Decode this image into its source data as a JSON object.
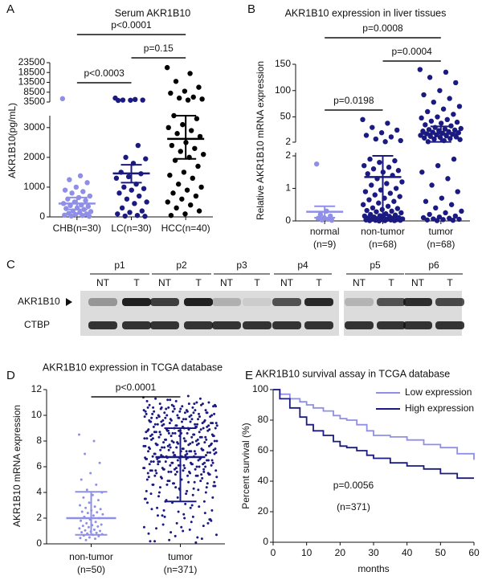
{
  "chart_data": [
    {
      "type": "dot",
      "panel": "A",
      "title": "Serum AKR1B10",
      "ylabel": "AKR1B10(pg/mL)",
      "categories": [
        "CHB(n=30)",
        "LC(n=30)",
        "HCC(n=40)"
      ],
      "colors": [
        "#8f8fe8",
        "#1a1a80",
        "#000000"
      ],
      "values": [
        [
          5200,
          1380,
          1250,
          1150,
          1000,
          900,
          850,
          800,
          700,
          650,
          600,
          550,
          500,
          450,
          400,
          380,
          350,
          300,
          280,
          250,
          200,
          180,
          150,
          120,
          100,
          80,
          60,
          50,
          30,
          20
        ],
        [
          5500,
          4800,
          4500,
          4500,
          4400,
          4300,
          2400,
          2000,
          1950,
          1800,
          1500,
          1450,
          1350,
          1300,
          1100,
          1000,
          950,
          900,
          800,
          700,
          600,
          500,
          450,
          300,
          200,
          150,
          100,
          50,
          30,
          20
        ],
        [
          21000,
          18000,
          14000,
          11000,
          9000,
          8000,
          6000,
          5500,
          5000,
          4500,
          3400,
          3300,
          3100,
          3000,
          2900,
          2800,
          2700,
          2500,
          2400,
          2300,
          2200,
          2100,
          2000,
          1900,
          1700,
          1500,
          1400,
          1300,
          1100,
          1000,
          900,
          800,
          700,
          600,
          500,
          400,
          300,
          200,
          100,
          50
        ]
      ],
      "means": [
        450,
        1460,
        2620
      ],
      "error_bars": [
        [
          250,
          650
        ],
        [
          1150,
          1750
        ],
        [
          1950,
          3400
        ]
      ],
      "y_segments": [
        {
          "ylim": [
            0,
            3400
          ],
          "yticks": [
            0,
            1000,
            2000,
            3000
          ]
        },
        {
          "ylim": [
            3500,
            23500
          ],
          "yticks": [
            3500,
            8500,
            13500,
            18500,
            23500
          ]
        }
      ],
      "annotations": [
        {
          "text": "p<0.0001",
          "pair": [
            0,
            2
          ]
        },
        {
          "text": "p=0.15",
          "pair": [
            1,
            2
          ]
        },
        {
          "text": "p<0.0003",
          "pair": [
            0,
            1
          ]
        }
      ]
    },
    {
      "type": "dot",
      "panel": "B",
      "title": "AKR1B10 expression in liver tissues",
      "ylabel": "Relative AKR1B10 mRNA expression",
      "categories": [
        "normal",
        "non-tumor",
        "tumor"
      ],
      "category_sublabels": [
        "(n=9)",
        "(n=68)",
        "(n=68)"
      ],
      "colors": [
        "#8f8fe8",
        "#1a1a80",
        "#1a1a80"
      ],
      "values": [
        [
          1.75,
          0.3,
          0.2,
          0.15,
          0.1,
          0.08,
          0.05,
          0.03,
          0.02
        ],
        [
          45,
          38,
          30,
          25,
          20,
          15,
          12,
          8,
          5,
          3,
          1.9,
          1.85,
          1.8,
          1.7,
          1.65,
          1.6,
          1.55,
          1.5,
          1.45,
          1.4,
          1.3,
          1.2,
          1.15,
          1.1,
          1.0,
          0.95,
          0.9,
          0.85,
          0.8,
          0.75,
          0.7,
          0.65,
          0.6,
          0.55,
          0.5,
          0.45,
          0.4,
          0.38,
          0.35,
          0.32,
          0.3,
          0.28,
          0.25,
          0.22,
          0.2,
          0.18,
          0.16,
          0.15,
          0.14,
          0.12,
          0.1,
          0.1,
          0.09,
          0.08,
          0.07,
          0.06,
          0.05,
          0.05,
          0.04,
          0.04,
          0.03,
          0.03,
          0.02,
          0.02,
          0.01,
          0.01,
          0.01,
          0.0
        ],
        [
          140,
          135,
          125,
          115,
          100,
          92,
          85,
          78,
          70,
          65,
          60,
          55,
          50,
          48,
          45,
          42,
          40,
          38,
          35,
          33,
          30,
          28,
          27,
          26,
          25,
          24,
          23,
          22,
          21,
          20,
          19,
          18,
          17,
          16,
          15,
          14,
          13,
          12,
          11,
          10,
          9,
          8,
          7,
          5,
          3,
          1.9,
          1.7,
          1.5,
          1.3,
          1.1,
          0.9,
          0.7,
          0.6,
          0.5,
          0.4,
          0.3,
          0.25,
          0.2,
          0.15,
          0.12,
          0.1,
          0.08,
          0.06,
          0.05,
          0.04,
          0.03,
          0.02,
          0.01
        ]
      ],
      "means": [
        0.28,
        1.35,
        18
      ],
      "error_bars": [
        [
          0.1,
          0.45
        ],
        [
          0.1,
          2
        ],
        [
          2.5,
          32
        ]
      ],
      "y_segments": [
        {
          "ylim": [
            0,
            2.1
          ],
          "yticks": [
            0,
            1,
            2
          ]
        },
        {
          "ylim": [
            2,
            150
          ],
          "yticks": [
            2,
            50,
            100,
            150
          ]
        }
      ],
      "annotations": [
        {
          "text": "p=0.0008",
          "pair": [
            0,
            2
          ]
        },
        {
          "text": "p=0.0004",
          "pair": [
            1,
            2
          ]
        },
        {
          "text": "p=0.0198",
          "pair": [
            0,
            1
          ]
        }
      ]
    },
    {
      "type": "dot",
      "panel": "D",
      "title": "AKR1B10 expression in TCGA database",
      "ylabel": "AKR1B10 mRNA expression",
      "categories": [
        "non-tumor",
        "tumor"
      ],
      "category_sublabels": [
        "(n=50)",
        "(n=371)"
      ],
      "colors": [
        "#8f8fe8",
        "#1a1a80"
      ],
      "values": [
        [
          8.5,
          8.0,
          7.0,
          6.3,
          5.5,
          5.0,
          4.6,
          4.2,
          4.0,
          3.8,
          3.6,
          3.4,
          3.2,
          3.0,
          2.9,
          2.8,
          2.7,
          2.6,
          2.5,
          2.45,
          2.4,
          2.3,
          2.2,
          2.1,
          2.0,
          1.9,
          1.8,
          1.7,
          1.6,
          1.5,
          1.45,
          1.4,
          1.35,
          1.3,
          1.2,
          1.1,
          1.05,
          1.0,
          0.95,
          0.9,
          0.85,
          0.8,
          0.75,
          0.7,
          0.65,
          0.6,
          0.5,
          0.45,
          0.4,
          0.3
        ],
        [
          11.4,
          10.9,
          10.5,
          10.2,
          9.8,
          9.5,
          9.1,
          8.8,
          8.4,
          8.0,
          7.7,
          7.3,
          6.9,
          6.6,
          6.2,
          5.8,
          5.4,
          5.0,
          4.6,
          4.2,
          11.2,
          10.7,
          10.3,
          9.9,
          9.6,
          9.2,
          8.9,
          8.5,
          8.1,
          7.8,
          7.4,
          7.0,
          6.7,
          6.3,
          5.9,
          5.5,
          5.1,
          4.7,
          4.3,
          3.9,
          11.0,
          10.6,
          10.1,
          9.7,
          9.3,
          9.0,
          8.6,
          8.2,
          7.9,
          7.5,
          7.1,
          6.8,
          6.4,
          6.0,
          5.6,
          5.2,
          4.8,
          4.4,
          4.0,
          3.6,
          10.8,
          10.4,
          10.0,
          9.4,
          9.0,
          8.7,
          8.3,
          7.9,
          7.6,
          7.2,
          6.8,
          6.5,
          6.1,
          5.7,
          5.3,
          4.9,
          4.5,
          4.1,
          3.7,
          3.3,
          11.1,
          10.6,
          10.2,
          9.8,
          9.4,
          9.1,
          8.7,
          8.3,
          8.0,
          7.6,
          7.2,
          6.9,
          6.5,
          6.1,
          5.7,
          5.3,
          4.9,
          4.5,
          3.1,
          2.8,
          10.9,
          10.5,
          10.1,
          9.7,
          9.3,
          8.9,
          8.6,
          8.2,
          7.8,
          7.5,
          7.1,
          6.7,
          6.4,
          6.0,
          5.6,
          5.2,
          4.8,
          3.4,
          2.6,
          2.3,
          11.3,
          10.8,
          10.3,
          9.9,
          9.5,
          9.2,
          8.8,
          8.4,
          8.1,
          7.7,
          7.3,
          7.0,
          6.6,
          6.2,
          5.8,
          5.4,
          5.0,
          3.8,
          2.1,
          1.9,
          10.7,
          10.3,
          9.9,
          9.6,
          9.2,
          8.9,
          8.5,
          8.1,
          7.8,
          7.4,
          7.0,
          6.7,
          6.3,
          5.9,
          5.5,
          5.1,
          4.7,
          3.5,
          1.7,
          1.5,
          11.0,
          10.5,
          10.1,
          9.7,
          9.4,
          9.0,
          8.6,
          8.3,
          7.9,
          7.5,
          7.2,
          6.8,
          6.4,
          6.1,
          5.7,
          5.3,
          4.9,
          3.2,
          1.3,
          1.1,
          10.6,
          10.2,
          9.8,
          9.5,
          9.1,
          8.8,
          8.4,
          8.0,
          7.7,
          7.3,
          6.9,
          6.6,
          6.2,
          5.8,
          5.4,
          5.0,
          4.6,
          2.9,
          0.9,
          0.7,
          11.5,
          10.9,
          10.4,
          10.0,
          9.6,
          9.3,
          8.9,
          8.5,
          8.2,
          7.8,
          7.4,
          7.1,
          6.7,
          6.3,
          5.9,
          5.5,
          4.2,
          2.7,
          0.5,
          0.3,
          10.8,
          10.4,
          10.0,
          9.5,
          9.2,
          8.8,
          8.5,
          8.1,
          7.7,
          7.4,
          7.0,
          6.6,
          6.3,
          5.9,
          5.6,
          5.2,
          4.4,
          2.5,
          0.2,
          0.1,
          11.2,
          10.7,
          10.2,
          9.8,
          9.4,
          9.0,
          8.7,
          8.3,
          7.9,
          7.6,
          7.2,
          6.8,
          6.5,
          6.1,
          5.7,
          5.3,
          4.0,
          2.4,
          1.6,
          0.8,
          10.9,
          10.5,
          10.0,
          9.7,
          9.3,
          8.9,
          8.6,
          8.2,
          7.8,
          7.5,
          7.1,
          6.7,
          6.4,
          6.0,
          5.6,
          4.8,
          3.9,
          2.2,
          1.4,
          0.6,
          11.1,
          10.6,
          10.2,
          9.9,
          9.5,
          9.1,
          8.7,
          8.4,
          8.0,
          7.7,
          7.3,
          6.9,
          6.5,
          6.2,
          5.8,
          4.6,
          3.6,
          2.0,
          1.2,
          0.4,
          10.7,
          10.3,
          10.0,
          9.6,
          9.2,
          8.8,
          8.5,
          8.1,
          7.7,
          7.4,
          7.0,
          6.7,
          6.3,
          5.9,
          5.5,
          4.3,
          3.3,
          1.8,
          1.0,
          0.2,
          11.3,
          10.8,
          10.4,
          9.9,
          9.5,
          9.1,
          8.8,
          8.4,
          8.0,
          7.6,
          7.3,
          6.9,
          6.6,
          6.2,
          5.8,
          4.1,
          3.0,
          2.6,
          1.9,
          1.3,
          10.6,
          10.1,
          9.7,
          9.4,
          9.0,
          8.7,
          8.3,
          7.9,
          7.5,
          7.2,
          6.8,
          6.5,
          6.1,
          5.7,
          5.4,
          4.7,
          3.5,
          2.8,
          2.2,
          1.6,
          10.3,
          9.8,
          9.3,
          8.6,
          8.0,
          7.2,
          6.4,
          5.6,
          4.4,
          3.2,
          2.1
        ]
      ],
      "means": [
        2.0,
        6.75
      ],
      "error_bars": [
        [
          0.7,
          4.05
        ],
        [
          3.3,
          9.0
        ]
      ],
      "y_segments": [
        {
          "ylim": [
            0,
            12
          ],
          "yticks": [
            0,
            2,
            4,
            6,
            8,
            10,
            12
          ]
        }
      ],
      "annotations": [
        {
          "text": "p<0.0001",
          "pair": [
            0,
            1
          ]
        }
      ]
    },
    {
      "type": "survival",
      "panel": "E",
      "title": "AKR1B10 survival assay in TCGA database",
      "xlabel": "months",
      "ylabel": "Percent survival (%)",
      "x": [
        0,
        2,
        5,
        8,
        10,
        12,
        15,
        18,
        20,
        22,
        25,
        28,
        30,
        35,
        40,
        45,
        50,
        55,
        60
      ],
      "series": [
        {
          "name": "Low expression",
          "color": "#8f8fe8",
          "values": [
            100,
            97,
            94,
            92,
            90,
            88,
            86,
            83,
            81,
            80,
            77,
            73,
            70,
            69,
            67,
            64,
            62,
            58,
            54
          ]
        },
        {
          "name": "High expression",
          "color": "#1a1a80",
          "values": [
            100,
            94,
            88,
            82,
            77,
            73,
            70,
            66,
            63,
            62,
            60,
            57,
            55,
            52,
            50,
            48,
            45,
            42,
            42
          ]
        }
      ],
      "xlim": [
        0,
        60
      ],
      "xticks": [
        0,
        10,
        20,
        30,
        40,
        50,
        60
      ],
      "ylim": [
        0,
        100
      ],
      "yticks": [
        0,
        20,
        40,
        60,
        80,
        100
      ],
      "legend": "upper right",
      "annotations": [
        "p=0.0056",
        "(n=371)"
      ]
    }
  ],
  "blot": {
    "panel": "C",
    "lanes": [
      "p1",
      "p2",
      "p3",
      "p4",
      "p5",
      "p6"
    ],
    "lane_labels": [
      "NT",
      "T"
    ],
    "rows": [
      "AKR1B10",
      "CTBP"
    ]
  }
}
